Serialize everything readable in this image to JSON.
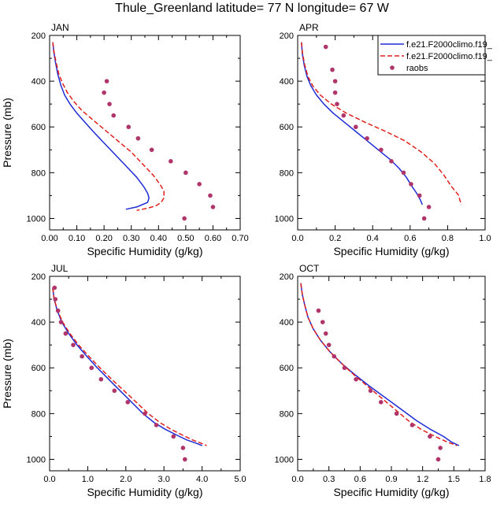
{
  "title": "Thule_Greenland  latitude= 77 N longitude= 67 W",
  "colors": {
    "model1": "#1f2bd6",
    "model2": "#e0201b",
    "raobs": "#b0356a",
    "axis": "#000000"
  },
  "legend": {
    "placement": "top-right of APR panel",
    "entries": [
      {
        "label": "f.e21.F2000climo.f19_",
        "style": "solid line",
        "color": "#1f2bd6"
      },
      {
        "label": "f.e21.F2000climo.f19_",
        "style": "dashed line",
        "color": "#e0201b"
      },
      {
        "label": "raobs",
        "style": "dot",
        "color": "#b0356a"
      }
    ]
  },
  "chart_data": [
    {
      "type": "line",
      "panel": "JAN",
      "xlabel": "Specific Humidity (g/kg)",
      "ylabel": "Pressure (mb)",
      "xlim": [
        0,
        0.7
      ],
      "ylim": [
        1050,
        200
      ],
      "y_reversed": true,
      "xticks": [
        0,
        0.1,
        0.2,
        0.3,
        0.4,
        0.5,
        0.6,
        0.7
      ],
      "xticklabels": [
        "0.00",
        "0.10",
        "0.20",
        "0.30",
        "0.40",
        "0.50",
        "0.60",
        "0.70"
      ],
      "yticks": [
        200,
        400,
        600,
        800,
        1000
      ],
      "series": [
        {
          "kind": "model1",
          "x": [
            0.012,
            0.015,
            0.022,
            0.03,
            0.042,
            0.055,
            0.075,
            0.1,
            0.13,
            0.16,
            0.2,
            0.24,
            0.28,
            0.32,
            0.345,
            0.36,
            0.365,
            0.36,
            0.34,
            0.32,
            0.28
          ],
          "y": [
            230,
            270,
            320,
            370,
            420,
            460,
            500,
            540,
            580,
            620,
            670,
            720,
            770,
            820,
            860,
            890,
            910,
            930,
            940,
            950,
            960
          ]
        },
        {
          "kind": "model2",
          "x": [
            0.012,
            0.016,
            0.024,
            0.034,
            0.048,
            0.065,
            0.09,
            0.12,
            0.16,
            0.2,
            0.25,
            0.3,
            0.34,
            0.38,
            0.405,
            0.42,
            0.42,
            0.41,
            0.39,
            0.36,
            0.32
          ],
          "y": [
            230,
            270,
            320,
            370,
            410,
            450,
            490,
            530,
            570,
            610,
            660,
            710,
            760,
            810,
            850,
            880,
            910,
            930,
            945,
            955,
            965
          ]
        },
        {
          "kind": "raobs",
          "x": [
            0.21,
            0.2,
            0.22,
            0.235,
            0.29,
            0.325,
            0.375,
            0.445,
            0.5,
            0.55,
            0.59,
            0.6,
            0.495
          ],
          "y": [
            400,
            450,
            500,
            550,
            600,
            650,
            700,
            750,
            800,
            850,
            900,
            950,
            1000
          ]
        }
      ]
    },
    {
      "type": "line",
      "panel": "APR",
      "xlabel": "Specific Humidity (g/kg)",
      "ylabel": "",
      "xlim": [
        0,
        1.0
      ],
      "ylim": [
        1050,
        200
      ],
      "y_reversed": true,
      "xticks": [
        0,
        0.2,
        0.4,
        0.6,
        0.8,
        1.0
      ],
      "xticklabels": [
        "0.0",
        "0.2",
        "0.4",
        "0.6",
        "0.8",
        "1.0"
      ],
      "yticks": [
        200,
        400,
        600,
        800,
        1000
      ],
      "series": [
        {
          "kind": "model1",
          "x": [
            0.02,
            0.025,
            0.035,
            0.05,
            0.07,
            0.1,
            0.14,
            0.19,
            0.25,
            0.31,
            0.37,
            0.43,
            0.49,
            0.54,
            0.58,
            0.61,
            0.635,
            0.655,
            0.665
          ],
          "y": [
            230,
            280,
            330,
            380,
            420,
            460,
            500,
            540,
            580,
            620,
            660,
            700,
            740,
            780,
            820,
            860,
            890,
            920,
            940
          ]
        },
        {
          "kind": "model2",
          "x": [
            0.02,
            0.026,
            0.038,
            0.055,
            0.08,
            0.12,
            0.18,
            0.26,
            0.36,
            0.47,
            0.57,
            0.66,
            0.73,
            0.78,
            0.82,
            0.86,
            0.865,
            0.875
          ],
          "y": [
            230,
            280,
            330,
            380,
            420,
            460,
            500,
            540,
            580,
            620,
            660,
            710,
            760,
            810,
            860,
            900,
            920,
            940
          ]
        },
        {
          "kind": "raobs",
          "x": [
            0.15,
            0.185,
            0.2,
            0.2,
            0.21,
            0.245,
            0.31,
            0.37,
            0.445,
            0.5,
            0.565,
            0.605,
            0.65,
            0.7,
            0.675
          ],
          "y": [
            250,
            350,
            400,
            450,
            500,
            550,
            600,
            650,
            700,
            750,
            800,
            850,
            900,
            950,
            1000
          ]
        }
      ]
    },
    {
      "type": "line",
      "panel": "JUL",
      "xlabel": "Specific Humidity (g/kg)",
      "ylabel": "Pressure (mb)",
      "xlim": [
        0,
        5.0
      ],
      "ylim": [
        1050,
        200
      ],
      "y_reversed": true,
      "xticks": [
        0,
        1,
        2,
        3,
        4,
        5
      ],
      "xticklabels": [
        "0.0",
        "1.0",
        "2.0",
        "3.0",
        "4.0",
        "5.0"
      ],
      "yticks": [
        200,
        400,
        600,
        800,
        1000
      ],
      "series": [
        {
          "kind": "model1",
          "x": [
            0.08,
            0.12,
            0.2,
            0.32,
            0.5,
            0.72,
            0.98,
            1.25,
            1.55,
            1.85,
            2.15,
            2.45,
            2.75,
            3.05,
            3.35,
            3.6,
            3.85,
            4.0
          ],
          "y": [
            250,
            300,
            350,
            400,
            450,
            500,
            550,
            600,
            650,
            700,
            750,
            800,
            840,
            870,
            895,
            915,
            930,
            940
          ]
        },
        {
          "kind": "model2",
          "x": [
            0.08,
            0.12,
            0.21,
            0.34,
            0.53,
            0.76,
            1.03,
            1.32,
            1.63,
            1.95,
            2.27,
            2.59,
            2.9,
            3.2,
            3.5,
            3.75,
            3.98,
            4.12
          ],
          "y": [
            250,
            300,
            350,
            400,
            450,
            500,
            550,
            600,
            650,
            700,
            750,
            800,
            840,
            870,
            895,
            915,
            930,
            940
          ]
        },
        {
          "kind": "raobs",
          "x": [
            0.13,
            0.15,
            0.22,
            0.3,
            0.42,
            0.62,
            0.85,
            1.1,
            1.35,
            1.7,
            2.05,
            2.5,
            2.8,
            3.25,
            3.5,
            3.55
          ],
          "y": [
            250,
            300,
            350,
            400,
            450,
            500,
            550,
            600,
            650,
            700,
            750,
            800,
            850,
            900,
            950,
            1000
          ]
        }
      ]
    },
    {
      "type": "line",
      "panel": "OCT",
      "xlabel": "Specific Humidity (g/kg)",
      "ylabel": "",
      "xlim": [
        0,
        1.8
      ],
      "ylim": [
        1050,
        200
      ],
      "y_reversed": true,
      "xticks": [
        0,
        0.3,
        0.6,
        0.9,
        1.2,
        1.5,
        1.8
      ],
      "xticklabels": [
        "0.0",
        "0.3",
        "0.6",
        "0.9",
        "1.2",
        "1.5",
        "1.8"
      ],
      "yticks": [
        200,
        400,
        600,
        800,
        1000
      ],
      "series": [
        {
          "kind": "model1",
          "x": [
            0.03,
            0.045,
            0.07,
            0.1,
            0.15,
            0.22,
            0.31,
            0.42,
            0.55,
            0.69,
            0.84,
            0.99,
            1.14,
            1.28,
            1.4,
            1.48,
            1.55
          ],
          "y": [
            230,
            280,
            330,
            380,
            430,
            480,
            530,
            580,
            630,
            680,
            730,
            780,
            830,
            870,
            900,
            925,
            940
          ]
        },
        {
          "kind": "model2",
          "x": [
            0.03,
            0.045,
            0.07,
            0.1,
            0.15,
            0.22,
            0.31,
            0.42,
            0.54,
            0.67,
            0.8,
            0.93,
            1.06,
            1.19,
            1.32,
            1.44,
            1.53
          ],
          "y": [
            230,
            280,
            330,
            380,
            430,
            480,
            530,
            580,
            630,
            680,
            730,
            780,
            830,
            870,
            900,
            925,
            940
          ]
        },
        {
          "kind": "raobs",
          "x": [
            0.2,
            0.24,
            0.27,
            0.3,
            0.35,
            0.45,
            0.56,
            0.7,
            0.8,
            0.95,
            1.1,
            1.27,
            1.37,
            1.35
          ],
          "y": [
            350,
            400,
            450,
            500,
            550,
            600,
            650,
            700,
            750,
            800,
            850,
            900,
            950,
            1000
          ]
        }
      ]
    }
  ]
}
